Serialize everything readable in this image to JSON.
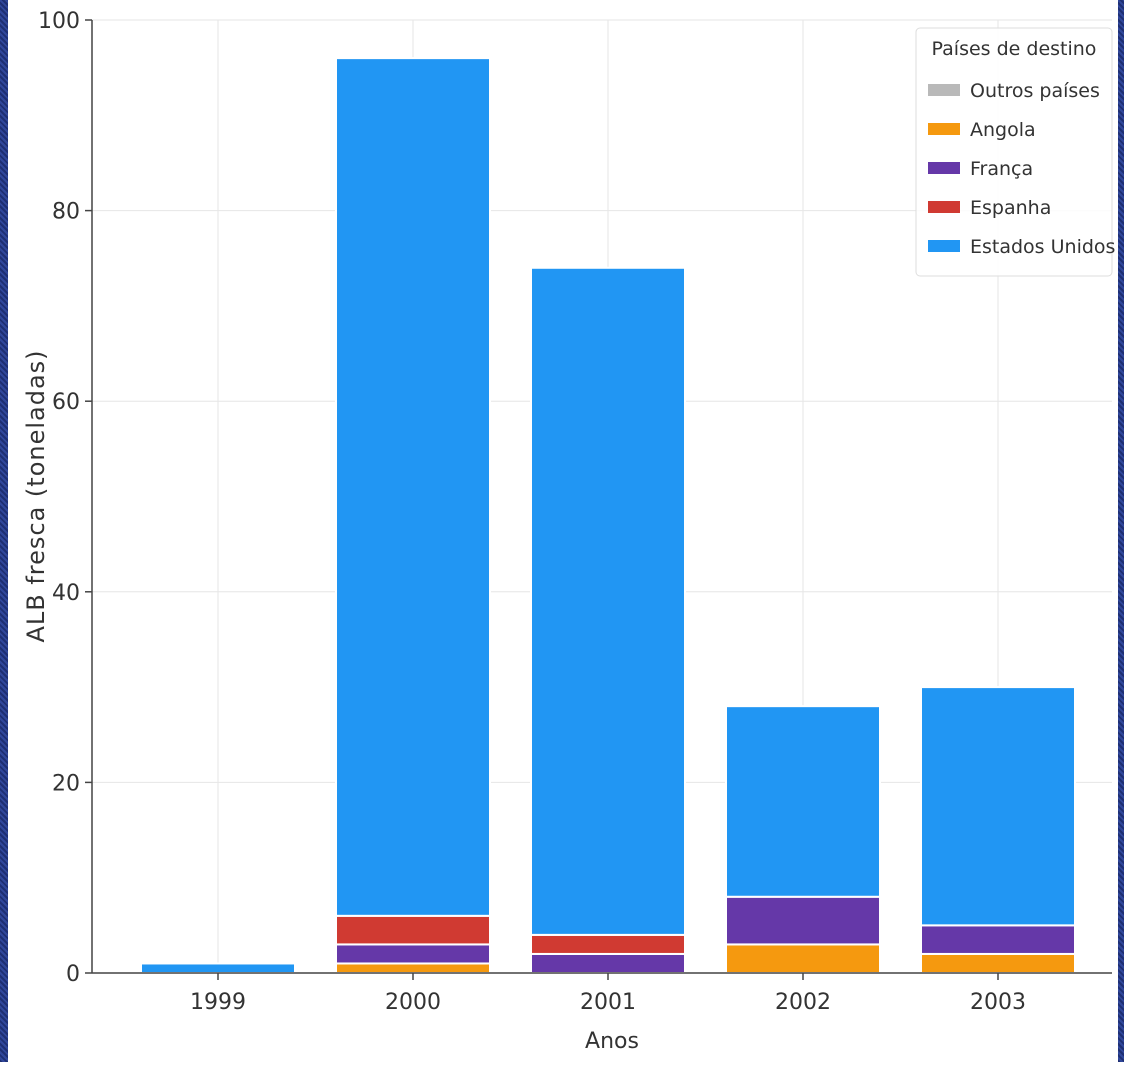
{
  "chart_data": {
    "type": "bar",
    "stacked": true,
    "title": "",
    "xlabel": "Anos",
    "ylabel": "ALB fresca (toneladas)",
    "categories": [
      "1999",
      "2000",
      "2001",
      "2002",
      "2003"
    ],
    "ylim": [
      0,
      100
    ],
    "yticks": [
      "0",
      "20",
      "40",
      "60",
      "80",
      "100"
    ],
    "grid": true,
    "legend": {
      "title": "Países de destino",
      "placement": "top-right"
    },
    "series": [
      {
        "name": "Angola",
        "color": "#f5990f",
        "values": [
          0,
          1,
          0,
          3,
          2
        ]
      },
      {
        "name": "França",
        "color": "#6538a8",
        "values": [
          0,
          2,
          2,
          5,
          3
        ]
      },
      {
        "name": "Espanha",
        "color": "#d03a32",
        "values": [
          0,
          3,
          2,
          0,
          0
        ]
      },
      {
        "name": "Outros países",
        "color": "#b9b9b9",
        "values": [
          0,
          0,
          0,
          0,
          0
        ]
      },
      {
        "name": "Estados Unidos",
        "color": "#2196f3",
        "values": [
          1,
          90,
          70,
          20,
          25
        ]
      }
    ],
    "legend_order": [
      "Outros países",
      "Angola",
      "França",
      "Espanha",
      "Estados Unidos"
    ]
  }
}
